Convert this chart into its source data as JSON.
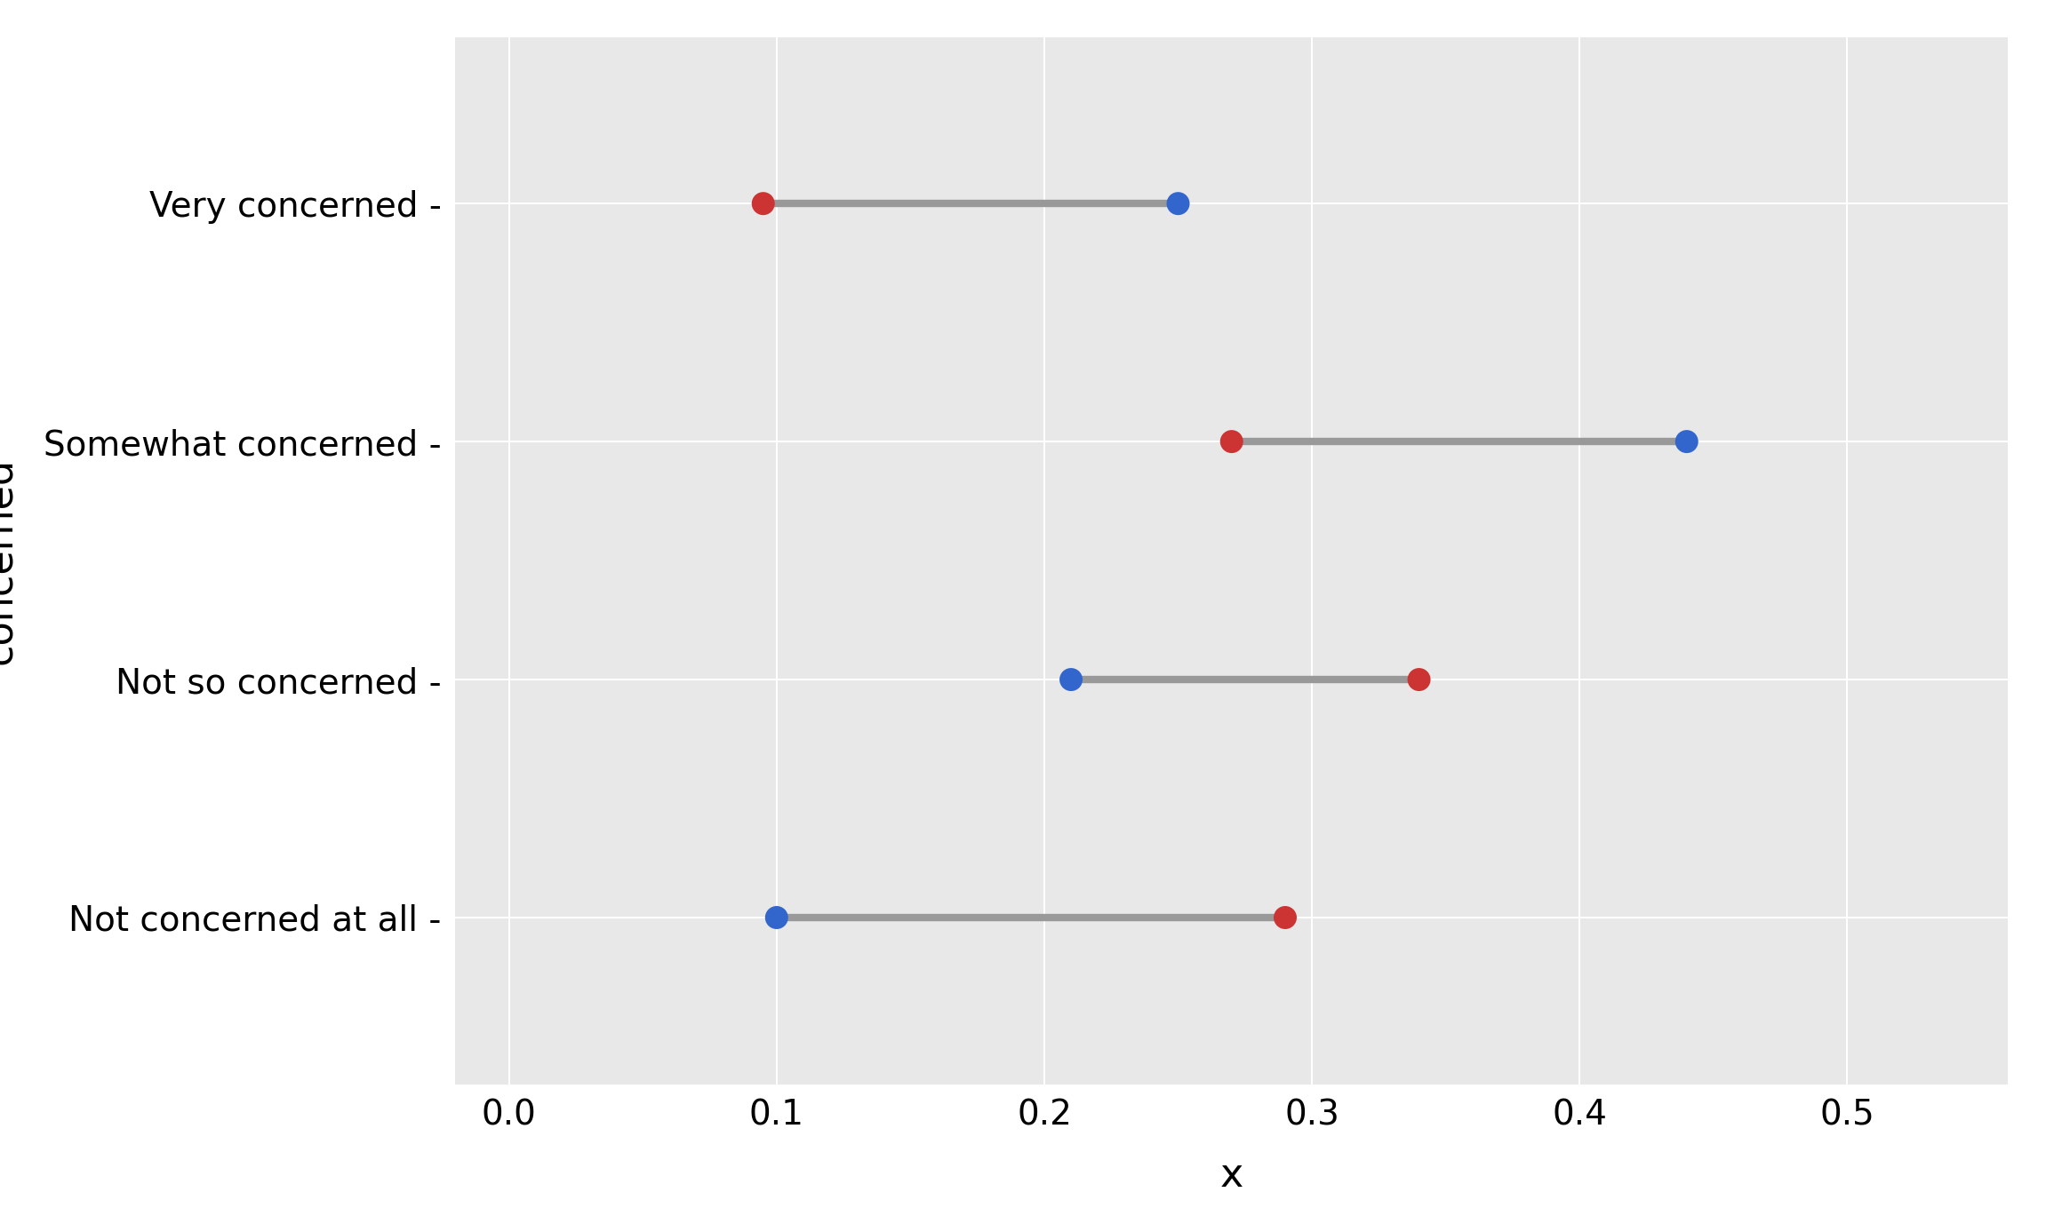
{
  "categories": [
    "Very concerned",
    "Somewhat concerned",
    "Not so concerned",
    "Not concerned at all"
  ],
  "dem_values": [
    0.25,
    0.44,
    0.21,
    0.1
  ],
  "rep_values": [
    0.095,
    0.27,
    0.34,
    0.29
  ],
  "dem_color": "#3366cc",
  "rep_color": "#cc3333",
  "line_color": "#999999",
  "line_width": 6,
  "dot_size": 350,
  "xlabel": "x",
  "ylabel": "concerned",
  "xlim": [
    -0.02,
    0.56
  ],
  "ylim": [
    -0.7,
    3.7
  ],
  "xticks": [
    0.0,
    0.1,
    0.2,
    0.3,
    0.4,
    0.5
  ],
  "xtick_labels": [
    "0.0",
    "0.1",
    "0.2",
    "0.3",
    "0.4",
    "0.5"
  ],
  "background_color": "#e8e8e8",
  "panel_color": "#e8e8e8",
  "grid_color": "#ffffff",
  "tick_label_fontsize": 28,
  "axis_label_fontsize": 32,
  "figsize": [
    23.29,
    13.87
  ],
  "dpi": 100
}
